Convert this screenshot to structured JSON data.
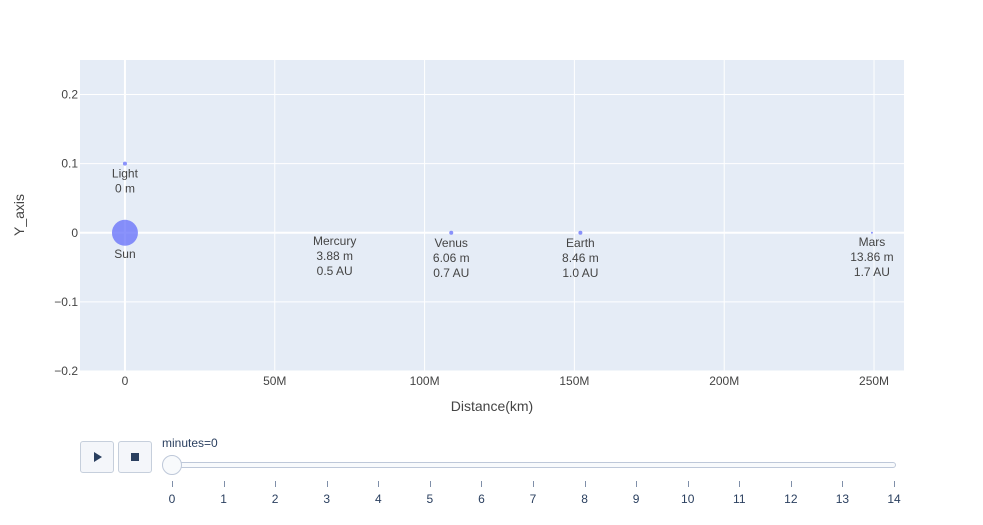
{
  "chart_data": {
    "type": "scatter",
    "xlabel": "Distance(km)",
    "ylabel": "Y_axis",
    "xlim": [
      -15000000,
      260000000
    ],
    "ylim": [
      -0.2,
      0.25
    ],
    "x_ticks": [
      0,
      50000000,
      100000000,
      150000000,
      200000000,
      250000000
    ],
    "x_tick_labels": [
      "0",
      "50M",
      "100M",
      "150M",
      "200M",
      "250M"
    ],
    "y_ticks": [
      0.2,
      0.1,
      0,
      -0.1,
      -0.2
    ],
    "y_tick_labels": [
      "0.2",
      "0.1",
      "0",
      "−0.1",
      "−0.2"
    ],
    "grid": true,
    "marker_color": "#636efa",
    "plot_bg": "#e5ecf6",
    "points": [
      {
        "x": 0,
        "y": 0,
        "size": 26,
        "lines": [
          "Sun"
        ]
      },
      {
        "x": 0,
        "y": 0.1,
        "size": 4,
        "lines": [
          "Light",
          "0 m"
        ]
      },
      {
        "x": 70000000,
        "y": 0,
        "size": 0,
        "lines": [
          "Mercury",
          "3.88 m",
          "0.5 AU"
        ]
      },
      {
        "x": 108900000,
        "y": 0,
        "size": 4,
        "lines": [
          "Venus",
          "6.06 m",
          "0.7 AU"
        ]
      },
      {
        "x": 152000000,
        "y": 0,
        "size": 4,
        "lines": [
          "Earth",
          "8.46 m",
          "1.0 AU"
        ]
      },
      {
        "x": 249300000,
        "y": 0,
        "size": 2,
        "lines": [
          "Mars",
          "13.86 m",
          "1.7 AU"
        ]
      }
    ]
  },
  "animation": {
    "slider_label": "minutes=0",
    "current_step": 0,
    "steps": [
      "0",
      "1",
      "2",
      "3",
      "4",
      "5",
      "6",
      "7",
      "8",
      "9",
      "10",
      "11",
      "12",
      "13",
      "14"
    ],
    "play_icon": "play-icon",
    "stop_icon": "stop-icon"
  }
}
